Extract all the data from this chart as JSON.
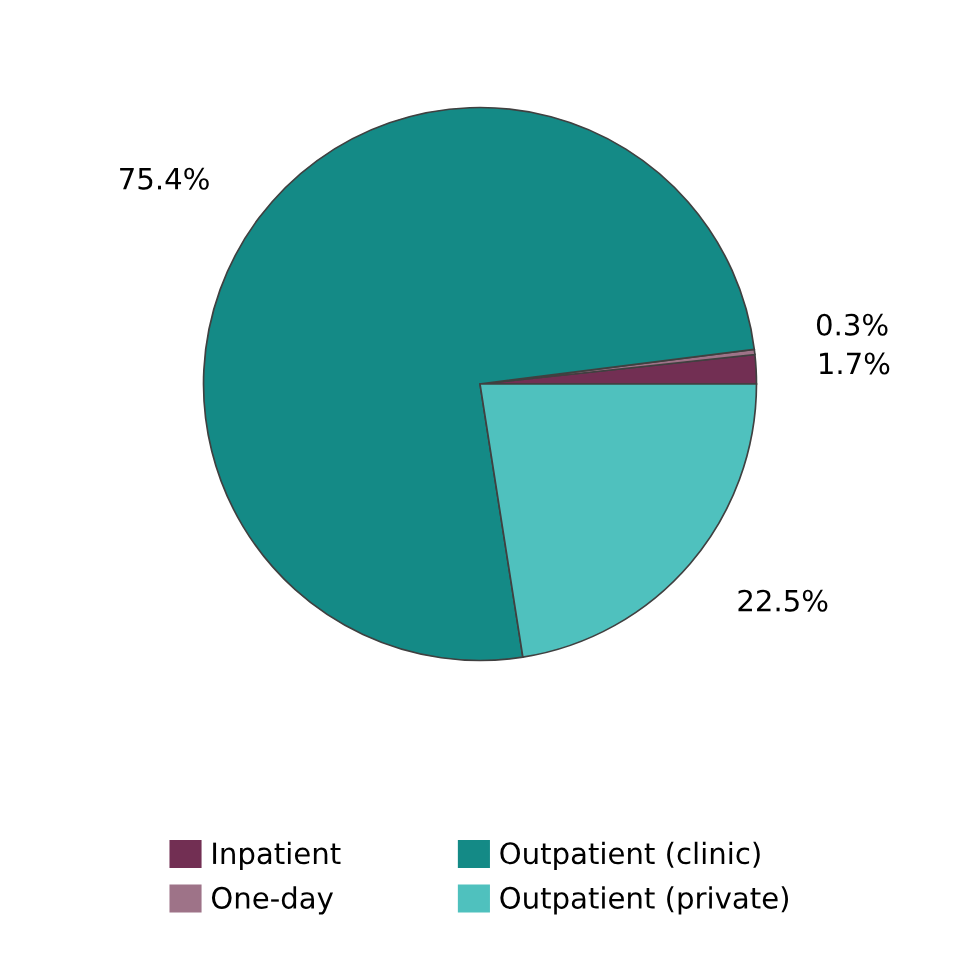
{
  "chart_data": {
    "type": "pie",
    "categories": [
      "Inpatient",
      "One-day",
      "Outpatient (clinic)",
      "Outpatient (private)"
    ],
    "values": [
      1.7,
      0.3,
      75.4,
      22.5
    ],
    "value_labels": [
      "1.7%",
      "0.3%",
      "75.4%",
      "22.5%"
    ],
    "colors": [
      "#722f53",
      "#9e7388",
      "#148a86",
      "#4fc1be"
    ],
    "legend": "bottom"
  }
}
